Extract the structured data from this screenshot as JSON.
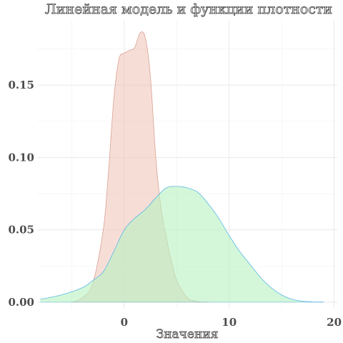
{
  "chart_data": {
    "type": "area",
    "title": "Линейная модель и функции плотности",
    "xlabel": "Значения",
    "ylabel": "",
    "xlim": [
      -8.3,
      20.3
    ],
    "ylim": [
      -0.0045,
      0.195
    ],
    "x_ticks": [
      0,
      10,
      20
    ],
    "x_tick_labels": [
      "0",
      "10",
      "20"
    ],
    "y_ticks": [
      0.0,
      0.05,
      0.1,
      0.15
    ],
    "y_tick_labels": [
      "0.00",
      "0.05",
      "0.10",
      "0.15"
    ],
    "grid": true,
    "legend": "none",
    "series": [
      {
        "fill": "#f0c8bc",
        "stroke": "#d9a090",
        "fill_opacity": 0.6,
        "x": [
          -5,
          -4,
          -3,
          -2,
          -1.5,
          -1,
          -0.5,
          0,
          0.5,
          1,
          1.5,
          2,
          2.5,
          3,
          3.5,
          4,
          4.5,
          5,
          6,
          7,
          8
        ],
        "y": [
          0.0,
          0.003,
          0.013,
          0.05,
          0.09,
          0.14,
          0.168,
          0.172,
          0.174,
          0.176,
          0.186,
          0.183,
          0.155,
          0.1,
          0.065,
          0.045,
          0.028,
          0.015,
          0.003,
          0.0005,
          0.0
        ]
      },
      {
        "fill": "#b7f2bf",
        "stroke": "#5ab8e8",
        "fill_opacity": 0.6,
        "x": [
          -8,
          -6,
          -4,
          -3,
          -2,
          -1,
          0,
          1,
          2,
          3,
          4,
          5,
          6,
          7,
          8,
          9,
          10,
          11,
          12,
          13,
          14,
          15,
          16,
          17,
          18,
          19
        ],
        "y": [
          0.002,
          0.005,
          0.01,
          0.015,
          0.021,
          0.035,
          0.05,
          0.058,
          0.064,
          0.072,
          0.079,
          0.08,
          0.079,
          0.076,
          0.068,
          0.058,
          0.046,
          0.035,
          0.026,
          0.017,
          0.01,
          0.005,
          0.002,
          0.0007,
          0.0002,
          0.0001
        ]
      }
    ]
  }
}
